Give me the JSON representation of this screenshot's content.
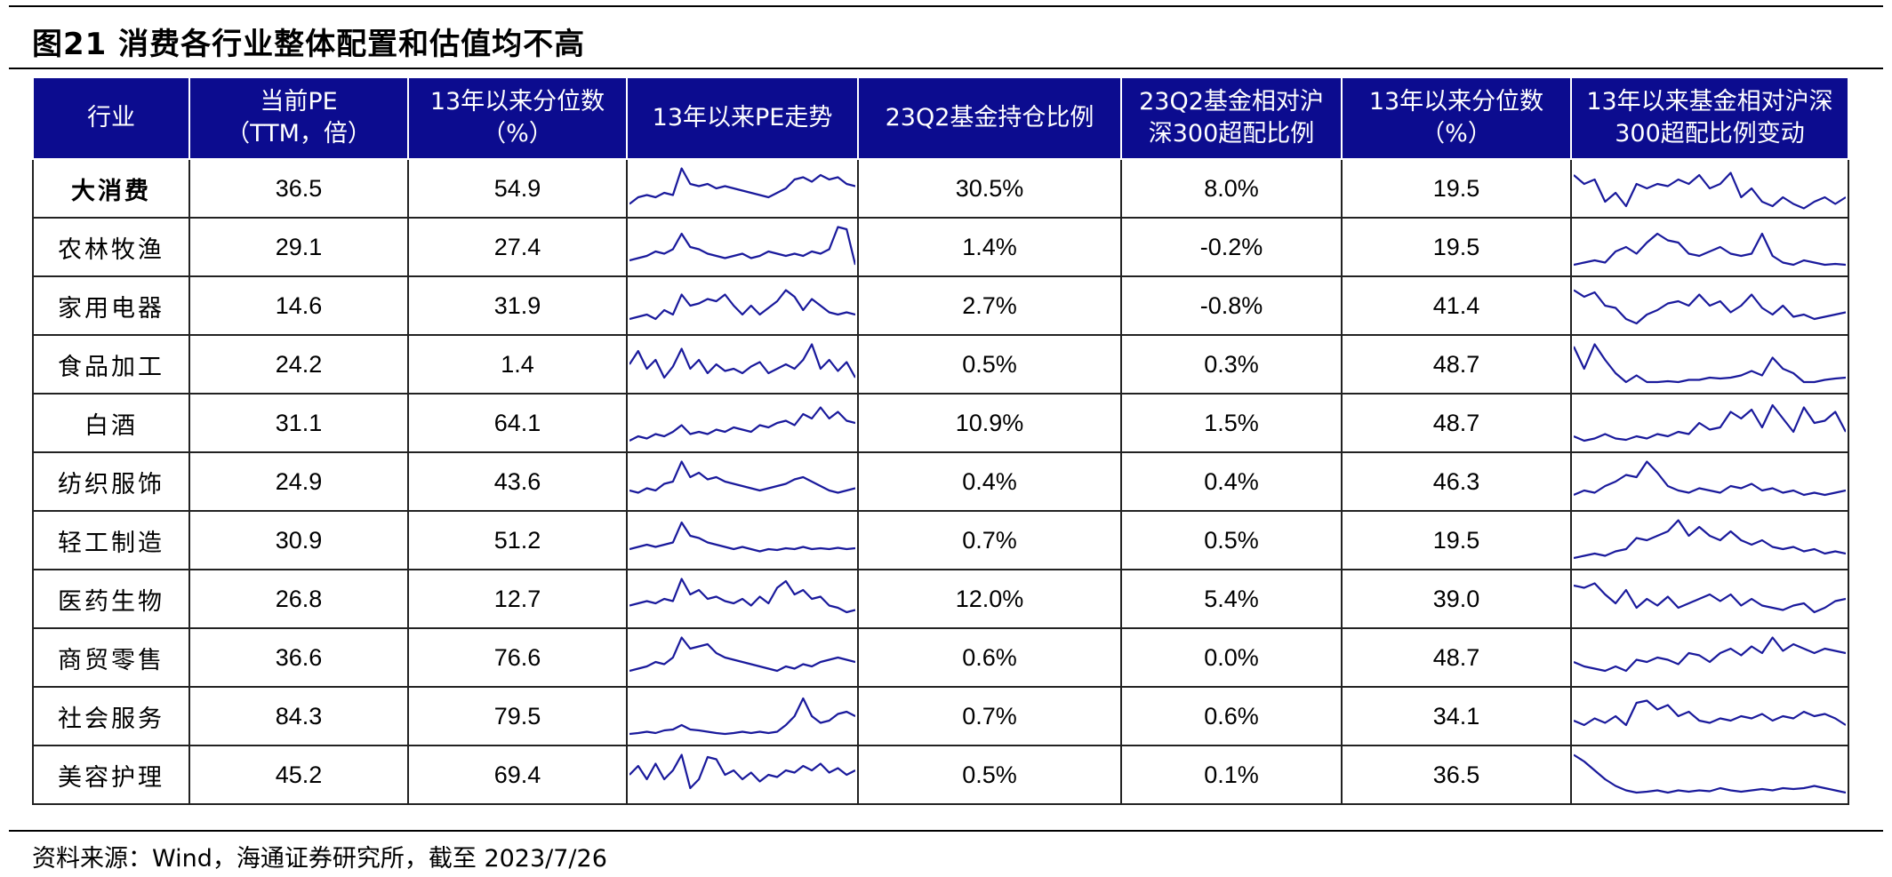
{
  "title": "图21 消费各行业整体配置和估值均不高",
  "source": "资料来源：Wind，海通证券研究所，截至 2023/7/26",
  "colors": {
    "header_bg": "#0c0c8f",
    "line": "#1a1a9c"
  },
  "headers": [
    [
      "行业"
    ],
    [
      "当前PE",
      "（TTM，倍）"
    ],
    [
      "13年以来分位数",
      "（%）"
    ],
    [
      "13年以来PE走势"
    ],
    [
      "23Q2基金持仓比例"
    ],
    [
      "23Q2基金相对沪",
      "深300超配比例"
    ],
    [
      "13年以来分位数",
      "（%）"
    ],
    [
      "13年以来基金相对沪深",
      "300超配比例变动"
    ]
  ],
  "rows": [
    {
      "name": "大消费",
      "bold": true,
      "pe": "36.5",
      "pe_pct": "54.9",
      "hold": "30.5%",
      "over": "8.0%",
      "over_pct": "19.5",
      "pe_trend": [
        0.15,
        0.3,
        0.35,
        0.3,
        0.4,
        0.35,
        0.95,
        0.6,
        0.55,
        0.6,
        0.5,
        0.55,
        0.5,
        0.45,
        0.4,
        0.35,
        0.3,
        0.4,
        0.5,
        0.7,
        0.75,
        0.65,
        0.8,
        0.7,
        0.75,
        0.6,
        0.55
      ],
      "over_trend": [
        0.8,
        0.6,
        0.7,
        0.2,
        0.4,
        0.1,
        0.6,
        0.5,
        0.6,
        0.55,
        0.7,
        0.6,
        0.8,
        0.5,
        0.6,
        0.85,
        0.3,
        0.5,
        0.2,
        0.1,
        0.3,
        0.15,
        0.05,
        0.2,
        0.3,
        0.15,
        0.3
      ]
    },
    {
      "name": "农林牧渔",
      "bold": false,
      "pe": "29.1",
      "pe_pct": "27.4",
      "hold": "1.4%",
      "over": "-0.2%",
      "over_pct": "19.5",
      "pe_trend": [
        0.2,
        0.25,
        0.3,
        0.4,
        0.35,
        0.45,
        0.8,
        0.5,
        0.45,
        0.35,
        0.3,
        0.25,
        0.3,
        0.35,
        0.25,
        0.3,
        0.4,
        0.35,
        0.3,
        0.35,
        0.3,
        0.4,
        0.35,
        0.45,
        0.95,
        0.9,
        0.1
      ],
      "over_trend": [
        0.1,
        0.15,
        0.2,
        0.15,
        0.4,
        0.5,
        0.35,
        0.6,
        0.8,
        0.65,
        0.6,
        0.35,
        0.3,
        0.4,
        0.5,
        0.35,
        0.3,
        0.35,
        0.8,
        0.3,
        0.15,
        0.1,
        0.2,
        0.15,
        0.1,
        0.12,
        0.1
      ]
    },
    {
      "name": "家用电器",
      "bold": false,
      "pe": "14.6",
      "pe_pct": "31.9",
      "hold": "2.7%",
      "over": "-0.8%",
      "over_pct": "41.4",
      "pe_trend": [
        0.2,
        0.25,
        0.3,
        0.2,
        0.4,
        0.3,
        0.75,
        0.5,
        0.55,
        0.65,
        0.6,
        0.75,
        0.5,
        0.3,
        0.5,
        0.3,
        0.45,
        0.6,
        0.85,
        0.7,
        0.4,
        0.65,
        0.5,
        0.35,
        0.3,
        0.35,
        0.3
      ],
      "over_trend": [
        0.85,
        0.7,
        0.8,
        0.5,
        0.45,
        0.2,
        0.1,
        0.3,
        0.4,
        0.55,
        0.6,
        0.5,
        0.75,
        0.5,
        0.6,
        0.35,
        0.5,
        0.75,
        0.45,
        0.3,
        0.5,
        0.25,
        0.3,
        0.2,
        0.25,
        0.3,
        0.35
      ]
    },
    {
      "name": "食品加工",
      "bold": false,
      "pe": "24.2",
      "pe_pct": "1.4",
      "hold": "0.5%",
      "over": "0.3%",
      "over_pct": "48.7",
      "pe_trend": [
        0.5,
        0.8,
        0.4,
        0.6,
        0.2,
        0.45,
        0.85,
        0.4,
        0.6,
        0.3,
        0.5,
        0.35,
        0.4,
        0.3,
        0.45,
        0.55,
        0.3,
        0.4,
        0.5,
        0.4,
        0.6,
        0.95,
        0.4,
        0.6,
        0.35,
        0.55,
        0.2
      ],
      "over_trend": [
        0.9,
        0.4,
        0.95,
        0.6,
        0.3,
        0.1,
        0.25,
        0.1,
        0.1,
        0.12,
        0.1,
        0.15,
        0.15,
        0.2,
        0.18,
        0.2,
        0.25,
        0.35,
        0.25,
        0.65,
        0.4,
        0.3,
        0.1,
        0.1,
        0.15,
        0.18,
        0.2
      ]
    },
    {
      "name": "白酒",
      "bold": false,
      "pe": "31.1",
      "pe_pct": "64.1",
      "hold": "10.9%",
      "over": "1.5%",
      "over_pct": "48.7",
      "pe_trend": [
        0.1,
        0.2,
        0.15,
        0.25,
        0.2,
        0.3,
        0.45,
        0.25,
        0.3,
        0.25,
        0.35,
        0.3,
        0.4,
        0.35,
        0.3,
        0.45,
        0.4,
        0.5,
        0.55,
        0.45,
        0.7,
        0.6,
        0.85,
        0.6,
        0.75,
        0.55,
        0.5
      ],
      "over_trend": [
        0.2,
        0.1,
        0.15,
        0.25,
        0.15,
        0.12,
        0.2,
        0.15,
        0.25,
        0.2,
        0.3,
        0.25,
        0.5,
        0.35,
        0.4,
        0.75,
        0.6,
        0.8,
        0.4,
        0.9,
        0.6,
        0.3,
        0.85,
        0.5,
        0.55,
        0.75,
        0.3
      ]
    },
    {
      "name": "纺织服饰",
      "bold": false,
      "pe": "24.9",
      "pe_pct": "43.6",
      "hold": "0.4%",
      "over": "0.4%",
      "over_pct": "46.3",
      "pe_trend": [
        0.3,
        0.25,
        0.35,
        0.3,
        0.45,
        0.5,
        0.95,
        0.6,
        0.7,
        0.55,
        0.6,
        0.5,
        0.45,
        0.4,
        0.35,
        0.3,
        0.35,
        0.4,
        0.45,
        0.55,
        0.6,
        0.5,
        0.4,
        0.3,
        0.25,
        0.3,
        0.35
      ],
      "over_trend": [
        0.2,
        0.3,
        0.25,
        0.4,
        0.5,
        0.65,
        0.6,
        0.95,
        0.7,
        0.4,
        0.3,
        0.25,
        0.35,
        0.3,
        0.25,
        0.4,
        0.35,
        0.45,
        0.3,
        0.35,
        0.25,
        0.3,
        0.2,
        0.25,
        0.2,
        0.25,
        0.3
      ]
    },
    {
      "name": "轻工制造",
      "bold": false,
      "pe": "30.9",
      "pe_pct": "51.2",
      "hold": "0.7%",
      "over": "0.5%",
      "over_pct": "19.5",
      "pe_trend": [
        0.3,
        0.35,
        0.4,
        0.35,
        0.4,
        0.45,
        0.9,
        0.6,
        0.55,
        0.45,
        0.4,
        0.35,
        0.3,
        0.35,
        0.3,
        0.25,
        0.3,
        0.28,
        0.32,
        0.3,
        0.35,
        0.3,
        0.32,
        0.3,
        0.33,
        0.3,
        0.32
      ],
      "over_trend": [
        0.1,
        0.15,
        0.2,
        0.15,
        0.25,
        0.3,
        0.55,
        0.5,
        0.6,
        0.7,
        0.95,
        0.6,
        0.8,
        0.6,
        0.5,
        0.7,
        0.5,
        0.4,
        0.5,
        0.35,
        0.3,
        0.35,
        0.25,
        0.3,
        0.2,
        0.25,
        0.2
      ]
    },
    {
      "name": "医药生物",
      "bold": false,
      "pe": "26.8",
      "pe_pct": "12.7",
      "hold": "12.0%",
      "over": "5.4%",
      "over_pct": "39.0",
      "pe_trend": [
        0.35,
        0.4,
        0.45,
        0.4,
        0.5,
        0.45,
        0.95,
        0.6,
        0.7,
        0.5,
        0.55,
        0.45,
        0.4,
        0.5,
        0.35,
        0.55,
        0.4,
        0.75,
        0.9,
        0.6,
        0.7,
        0.5,
        0.55,
        0.35,
        0.3,
        0.2,
        0.25
      ],
      "over_trend": [
        0.8,
        0.75,
        0.85,
        0.6,
        0.4,
        0.7,
        0.3,
        0.5,
        0.35,
        0.55,
        0.3,
        0.4,
        0.5,
        0.6,
        0.45,
        0.6,
        0.35,
        0.5,
        0.35,
        0.3,
        0.25,
        0.35,
        0.4,
        0.2,
        0.3,
        0.45,
        0.5
      ]
    },
    {
      "name": "商贸零售",
      "bold": false,
      "pe": "36.6",
      "pe_pct": "76.6",
      "hold": "0.6%",
      "over": "0.0%",
      "over_pct": "48.7",
      "pe_trend": [
        0.2,
        0.25,
        0.3,
        0.4,
        0.35,
        0.5,
        0.95,
        0.7,
        0.75,
        0.8,
        0.6,
        0.5,
        0.45,
        0.4,
        0.35,
        0.3,
        0.25,
        0.2,
        0.3,
        0.25,
        0.35,
        0.3,
        0.4,
        0.45,
        0.5,
        0.45,
        0.4
      ],
      "over_trend": [
        0.4,
        0.3,
        0.25,
        0.2,
        0.3,
        0.2,
        0.45,
        0.4,
        0.5,
        0.45,
        0.35,
        0.6,
        0.55,
        0.4,
        0.6,
        0.7,
        0.55,
        0.75,
        0.6,
        0.95,
        0.65,
        0.8,
        0.7,
        0.6,
        0.7,
        0.65,
        0.6
      ]
    },
    {
      "name": "社会服务",
      "bold": false,
      "pe": "84.3",
      "pe_pct": "79.5",
      "hold": "0.7%",
      "over": "0.6%",
      "over_pct": "34.1",
      "pe_trend": [
        0.1,
        0.12,
        0.15,
        0.12,
        0.18,
        0.2,
        0.3,
        0.2,
        0.18,
        0.15,
        0.12,
        0.1,
        0.12,
        0.15,
        0.12,
        0.15,
        0.12,
        0.15,
        0.3,
        0.5,
        0.9,
        0.5,
        0.35,
        0.4,
        0.55,
        0.6,
        0.5
      ],
      "over_trend": [
        0.4,
        0.3,
        0.45,
        0.35,
        0.5,
        0.3,
        0.8,
        0.85,
        0.65,
        0.75,
        0.5,
        0.6,
        0.4,
        0.35,
        0.45,
        0.4,
        0.5,
        0.45,
        0.55,
        0.4,
        0.5,
        0.45,
        0.6,
        0.5,
        0.55,
        0.45,
        0.3
      ]
    },
    {
      "name": "美容护理",
      "bold": false,
      "pe": "45.2",
      "pe_pct": "69.4",
      "hold": "0.5%",
      "over": "0.1%",
      "over_pct": "36.5",
      "pe_trend": [
        0.5,
        0.7,
        0.4,
        0.75,
        0.4,
        0.6,
        0.95,
        0.2,
        0.4,
        0.9,
        0.85,
        0.5,
        0.6,
        0.4,
        0.55,
        0.35,
        0.5,
        0.45,
        0.6,
        0.55,
        0.7,
        0.6,
        0.75,
        0.55,
        0.65,
        0.5,
        0.6
      ],
      "over_trend": [
        0.95,
        0.8,
        0.6,
        0.4,
        0.25,
        0.15,
        0.1,
        0.12,
        0.15,
        0.1,
        0.15,
        0.12,
        0.15,
        0.13,
        0.2,
        0.15,
        0.12,
        0.15,
        0.18,
        0.15,
        0.2,
        0.18,
        0.2,
        0.25,
        0.2,
        0.15,
        0.1
      ]
    }
  ]
}
